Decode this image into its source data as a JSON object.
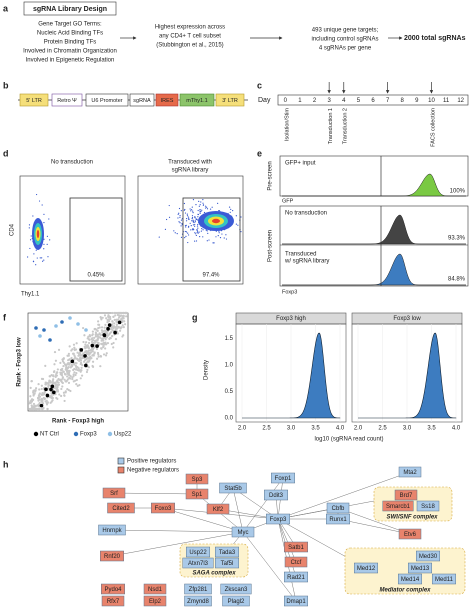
{
  "panels": {
    "a": {
      "label": "a",
      "title": "sgRNA Library Design",
      "go_terms": [
        "Gene Target GO Terms:",
        "Nucleic Acid Binding TFs",
        "Protein Binding TFs",
        "Involved in Chromatin Organization",
        "Involved in Epigenetic Regulation"
      ],
      "step2": [
        "Highest expression across",
        "any CD4+ T cell subset",
        "(Stubbington et al., 2015)"
      ],
      "step3": [
        "493 unique gene targets;",
        "including control sgRNAs",
        "4 sgRNAs per gene"
      ],
      "result": "2000 total sgRNAs",
      "result_color": "#3d7cc0"
    },
    "b": {
      "label": "b",
      "elements": [
        "5' LTR",
        "Retro Ψ",
        "U6 Promoter",
        "sgRNA",
        "IRES",
        "mThy1.1",
        "3' LTR"
      ]
    },
    "c": {
      "label": "c",
      "axis_label": "Day",
      "days": [
        0,
        1,
        2,
        3,
        4,
        5,
        6,
        7,
        8,
        9,
        10,
        11,
        12
      ],
      "events": [
        "Isolation/Stim",
        "Transduction 1",
        "Transduction 2",
        "FACS collection"
      ]
    },
    "d": {
      "label": "d",
      "titles": [
        [
          "No transduction"
        ],
        [
          "Transduced with",
          "sgRNA library"
        ]
      ],
      "gates": [
        "0.45%",
        "97.4%"
      ],
      "y_label": "CD4",
      "x_label": "Thy1.1"
    },
    "e": {
      "label": "e",
      "pre_label": "Pre-screen",
      "post_label": "Post-screen",
      "pre": {
        "name": "GFP+ input",
        "percent": "100%",
        "color": "#7ac943"
      },
      "pre_axis": "GFP",
      "post": [
        {
          "name": [
            "No transduction"
          ],
          "percent": "93.3%",
          "color": "#444444"
        },
        {
          "name": [
            "Transduced",
            "w/ sgRNA library"
          ],
          "percent": "84.8%",
          "color": "#3d7cc0"
        }
      ],
      "post_axis": "Foxp3"
    },
    "f": {
      "label": "f",
      "y_label": "Rank - Foxp3 low",
      "x_label": "Rank - Foxp3 high",
      "legend": [
        {
          "name": "NT Ctrl",
          "color": "#000000"
        },
        {
          "name": "Foxp3",
          "color": "#2f6db5"
        },
        {
          "name": "Usp22",
          "color": "#8fbfe6"
        }
      ]
    },
    "g": {
      "label": "g",
      "facets": [
        "Foxp3 high",
        "Foxp3 low"
      ],
      "y_label": "Density",
      "x_label": "log10 (sgRNA read count)",
      "yticks": [
        "0.0",
        "0.5",
        "1.0",
        "1.5"
      ],
      "xticks": [
        "2.0",
        "2.5",
        "3.0",
        "3.5",
        "4.0"
      ],
      "color": "#3d7cc0"
    },
    "h": {
      "label": "h",
      "legend": [
        {
          "name": "Positive regulators",
          "color": "#a9c9e8"
        },
        {
          "name": "Negative regulators",
          "color": "#e8836c"
        }
      ],
      "complexes": [
        "SWI/SNF complex",
        "SAGA complex",
        "Mediator complex"
      ],
      "nodes": [
        {
          "label": "Sp3",
          "color": "#e8836c"
        },
        {
          "label": "Srf",
          "color": "#e8836c"
        },
        {
          "label": "Sp1",
          "color": "#e8836c"
        },
        {
          "label": "Stat5b",
          "color": "#a9c9e8"
        },
        {
          "label": "Foxp1",
          "color": "#a9c9e8"
        },
        {
          "label": "Mta2",
          "color": "#a9c9e8"
        },
        {
          "label": "Cited2",
          "color": "#e8836c"
        },
        {
          "label": "Foxo3",
          "color": "#e8836c"
        },
        {
          "label": "Klf2",
          "color": "#e8836c"
        },
        {
          "label": "Ddit3",
          "color": "#a9c9e8"
        },
        {
          "label": "Cbfb",
          "color": "#a9c9e8"
        },
        {
          "label": "Brd7",
          "color": "#e8836c"
        },
        {
          "label": "Smarcb1",
          "color": "#e8836c"
        },
        {
          "label": "Ss18",
          "color": "#a9c9e8"
        },
        {
          "label": "Foxp3",
          "color": "#a9c9e8"
        },
        {
          "label": "Runx1",
          "color": "#a9c9e8"
        },
        {
          "label": "Hnrnpk",
          "color": "#a9c9e8"
        },
        {
          "label": "Myc",
          "color": "#a9c9e8"
        },
        {
          "label": "Etv6",
          "color": "#e8836c"
        },
        {
          "label": "Rnf20",
          "color": "#e8836c"
        },
        {
          "label": "Usp22",
          "color": "#a9c9e8"
        },
        {
          "label": "Tada3",
          "color": "#a9c9e8"
        },
        {
          "label": "Satb1",
          "color": "#e8836c"
        },
        {
          "label": "Med30",
          "color": "#a9c9e8"
        },
        {
          "label": "Atxn7l3",
          "color": "#a9c9e8"
        },
        {
          "label": "Taf5l",
          "color": "#a9c9e8"
        },
        {
          "label": "Ctcf",
          "color": "#e8836c"
        },
        {
          "label": "Med12",
          "color": "#a9c9e8"
        },
        {
          "label": "Med13",
          "color": "#a9c9e8"
        },
        {
          "label": "Rad21",
          "color": "#a9c9e8"
        },
        {
          "label": "Med14",
          "color": "#a9c9e8"
        },
        {
          "label": "Med11",
          "color": "#a9c9e8"
        },
        {
          "label": "Pydo4",
          "color": "#e8836c"
        },
        {
          "label": "Nsd1",
          "color": "#e8836c"
        },
        {
          "label": "Zfp281",
          "color": "#a9c9e8"
        },
        {
          "label": "Zkscan3",
          "color": "#a9c9e8"
        },
        {
          "label": "Rfx7",
          "color": "#e8836c"
        },
        {
          "label": "Elp2",
          "color": "#e8836c"
        },
        {
          "label": "Zmynd8",
          "color": "#a9c9e8"
        },
        {
          "label": "Plagl2",
          "color": "#a9c9e8"
        },
        {
          "label": "Dmap1",
          "color": "#a9c9e8"
        }
      ]
    }
  }
}
